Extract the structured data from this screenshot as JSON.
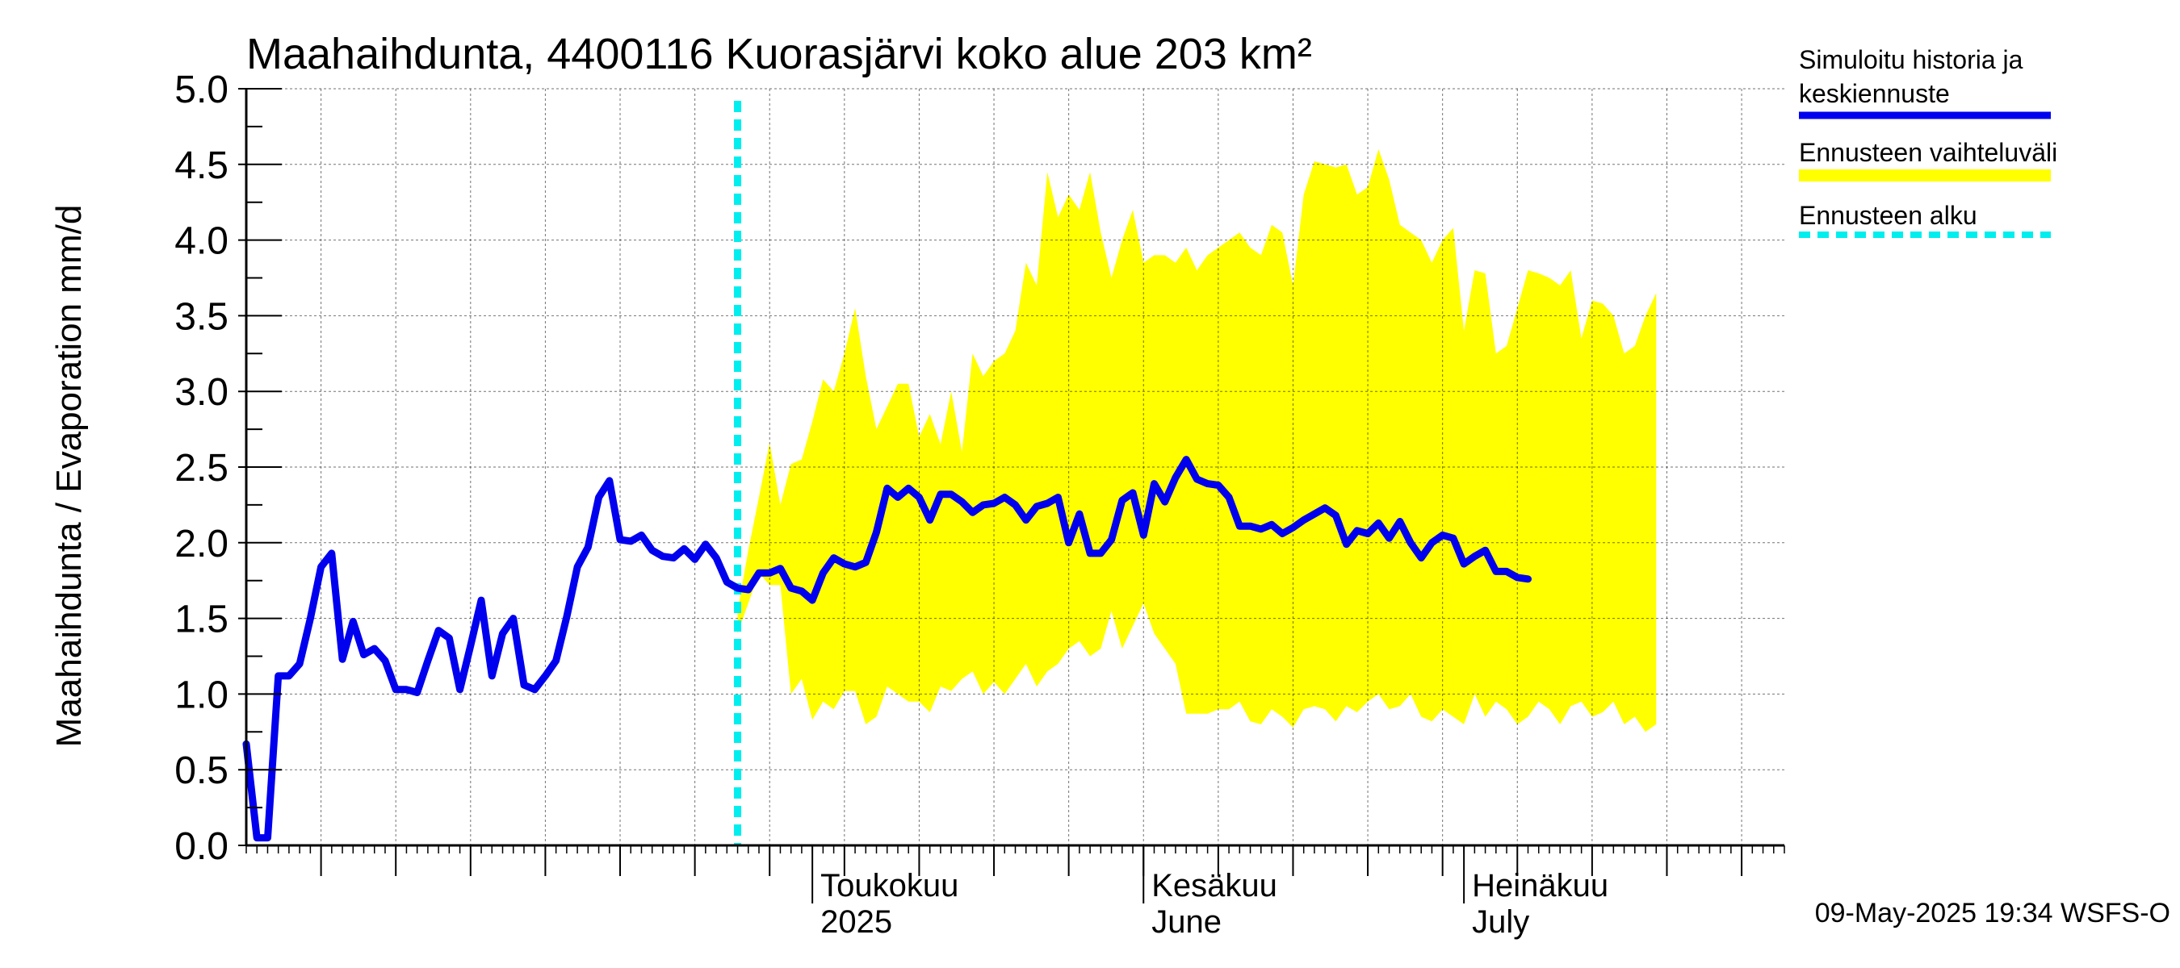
{
  "chart_data": {
    "type": "area",
    "title": "Maahaihdunta, 4400116 Kuorasjärvi koko alue 203 km²",
    "ylabel": "Maahaihdunta / Evaporation   mm/d",
    "xlabel": "",
    "ylim": [
      0,
      5
    ],
    "y_ticks": [
      "0.0",
      "0.5",
      "1.0",
      "1.5",
      "2.0",
      "2.5",
      "3.0",
      "3.5",
      "4.0",
      "4.5",
      "5.0"
    ],
    "x_range": [
      "2025-03-09",
      "2025-07-31"
    ],
    "forecast_start": "2025-04-24",
    "months": [
      {
        "label": "Toukokuu",
        "label2": "2025",
        "date": "2025-05-01"
      },
      {
        "label": "Kesäkuu",
        "label2": "June",
        "date": "2025-06-01"
      },
      {
        "label": "Heinäkuu",
        "label2": "July",
        "date": "2025-07-01"
      }
    ],
    "grid": true,
    "legend": {
      "placement": "right",
      "items": [
        {
          "label_line1": "Simuloitu historia ja",
          "label_line2": "keskiennuste",
          "color": "#0000ee",
          "style": "solid"
        },
        {
          "label_line1": "Ennusteen vaihteluväli",
          "label_line2": "",
          "color": "#ffff00",
          "style": "band"
        },
        {
          "label_line1": "Ennusteen alku",
          "label_line2": "",
          "color": "#00eeee",
          "style": "dashed"
        }
      ]
    },
    "series": [
      {
        "name": "Simuloitu historia ja keskiennuste",
        "color": "#0000ee",
        "start": "2025-03-09",
        "values": [
          0.67,
          0.05,
          0.05,
          1.12,
          1.12,
          1.2,
          1.5,
          1.84,
          1.93,
          1.23,
          1.48,
          1.26,
          1.3,
          1.22,
          1.03,
          1.03,
          1.01,
          1.22,
          1.42,
          1.37,
          1.03,
          1.32,
          1.62,
          1.12,
          1.4,
          1.5,
          1.06,
          1.03,
          1.12,
          1.22,
          1.51,
          1.84,
          1.97,
          2.3,
          2.41,
          2.02,
          2.01,
          2.05,
          1.95,
          1.91,
          1.9,
          1.96,
          1.89,
          1.99,
          1.9,
          1.74,
          1.7,
          1.69,
          1.8,
          1.8,
          1.83,
          1.7,
          1.68,
          1.62,
          1.8,
          1.9,
          1.86,
          1.84,
          1.87,
          2.07,
          2.36,
          2.3,
          2.36,
          2.3,
          2.15,
          2.32,
          2.32,
          2.27,
          2.2,
          2.25,
          2.26,
          2.3,
          2.25,
          2.15,
          2.24,
          2.26,
          2.3,
          2.0,
          2.19,
          1.93,
          1.93,
          2.02,
          2.28,
          2.33,
          2.05,
          2.39,
          2.27,
          2.43,
          2.55,
          2.42,
          2.39,
          2.38,
          2.3,
          2.11,
          2.11,
          2.09,
          2.12,
          2.06,
          2.1,
          2.15,
          2.19,
          2.23,
          2.18,
          1.99,
          2.08,
          2.06,
          2.13,
          2.03,
          2.14,
          2.0,
          1.9,
          2.0,
          2.05,
          2.03,
          1.86,
          1.91,
          1.95,
          1.81,
          1.81,
          1.77,
          1.76
        ]
      },
      {
        "name": "Ennusteen vaihteluväli",
        "color": "#ffff00",
        "start": "2025-04-24",
        "upper": [
          1.55,
          1.95,
          2.3,
          2.66,
          2.25,
          2.52,
          2.55,
          2.8,
          3.08,
          3.0,
          3.25,
          3.55,
          3.1,
          2.75,
          2.9,
          3.05,
          3.05,
          2.7,
          2.85,
          2.65,
          3.0,
          2.6,
          3.25,
          3.1,
          3.2,
          3.25,
          3.4,
          3.85,
          3.7,
          4.45,
          4.15,
          4.3,
          4.2,
          4.45,
          4.05,
          3.75,
          4.0,
          4.2,
          3.85,
          3.9,
          3.9,
          3.85,
          3.95,
          3.8,
          3.9,
          3.95,
          4.0,
          4.05,
          3.95,
          3.9,
          4.1,
          4.05,
          3.7,
          4.3,
          4.52,
          4.5,
          4.48,
          4.5,
          4.3,
          4.35,
          4.6,
          4.4,
          4.1,
          4.05,
          4.0,
          3.85,
          4.0,
          4.08,
          3.4,
          3.8,
          3.78,
          3.25,
          3.3,
          3.55,
          3.8,
          3.78,
          3.75,
          3.7,
          3.8,
          3.35,
          3.6,
          3.58,
          3.5,
          3.25,
          3.3,
          3.5,
          3.65
        ],
        "lower": [
          1.4,
          1.6,
          1.8,
          1.72,
          1.72,
          1.0,
          1.1,
          0.83,
          0.95,
          0.9,
          1.02,
          1.02,
          0.8,
          0.85,
          1.05,
          1.0,
          0.95,
          0.95,
          0.88,
          1.05,
          1.02,
          1.1,
          1.15,
          1.0,
          1.08,
          1.0,
          1.1,
          1.2,
          1.05,
          1.15,
          1.2,
          1.3,
          1.35,
          1.25,
          1.3,
          1.55,
          1.3,
          1.45,
          1.6,
          1.4,
          1.3,
          1.2,
          0.87,
          0.87,
          0.87,
          0.9,
          0.9,
          0.95,
          0.82,
          0.8,
          0.9,
          0.85,
          0.78,
          0.9,
          0.92,
          0.9,
          0.82,
          0.92,
          0.88,
          0.95,
          1.0,
          0.9,
          0.92,
          1.0,
          0.85,
          0.82,
          0.9,
          0.85,
          0.8,
          1.0,
          0.85,
          0.95,
          0.9,
          0.8,
          0.85,
          0.95,
          0.9,
          0.8,
          0.92,
          0.95,
          0.85,
          0.88,
          0.95,
          0.8,
          0.85,
          0.75,
          0.8
        ]
      }
    ]
  },
  "footer": {
    "timestamp": "09-May-2025 19:34 WSFS-O"
  }
}
